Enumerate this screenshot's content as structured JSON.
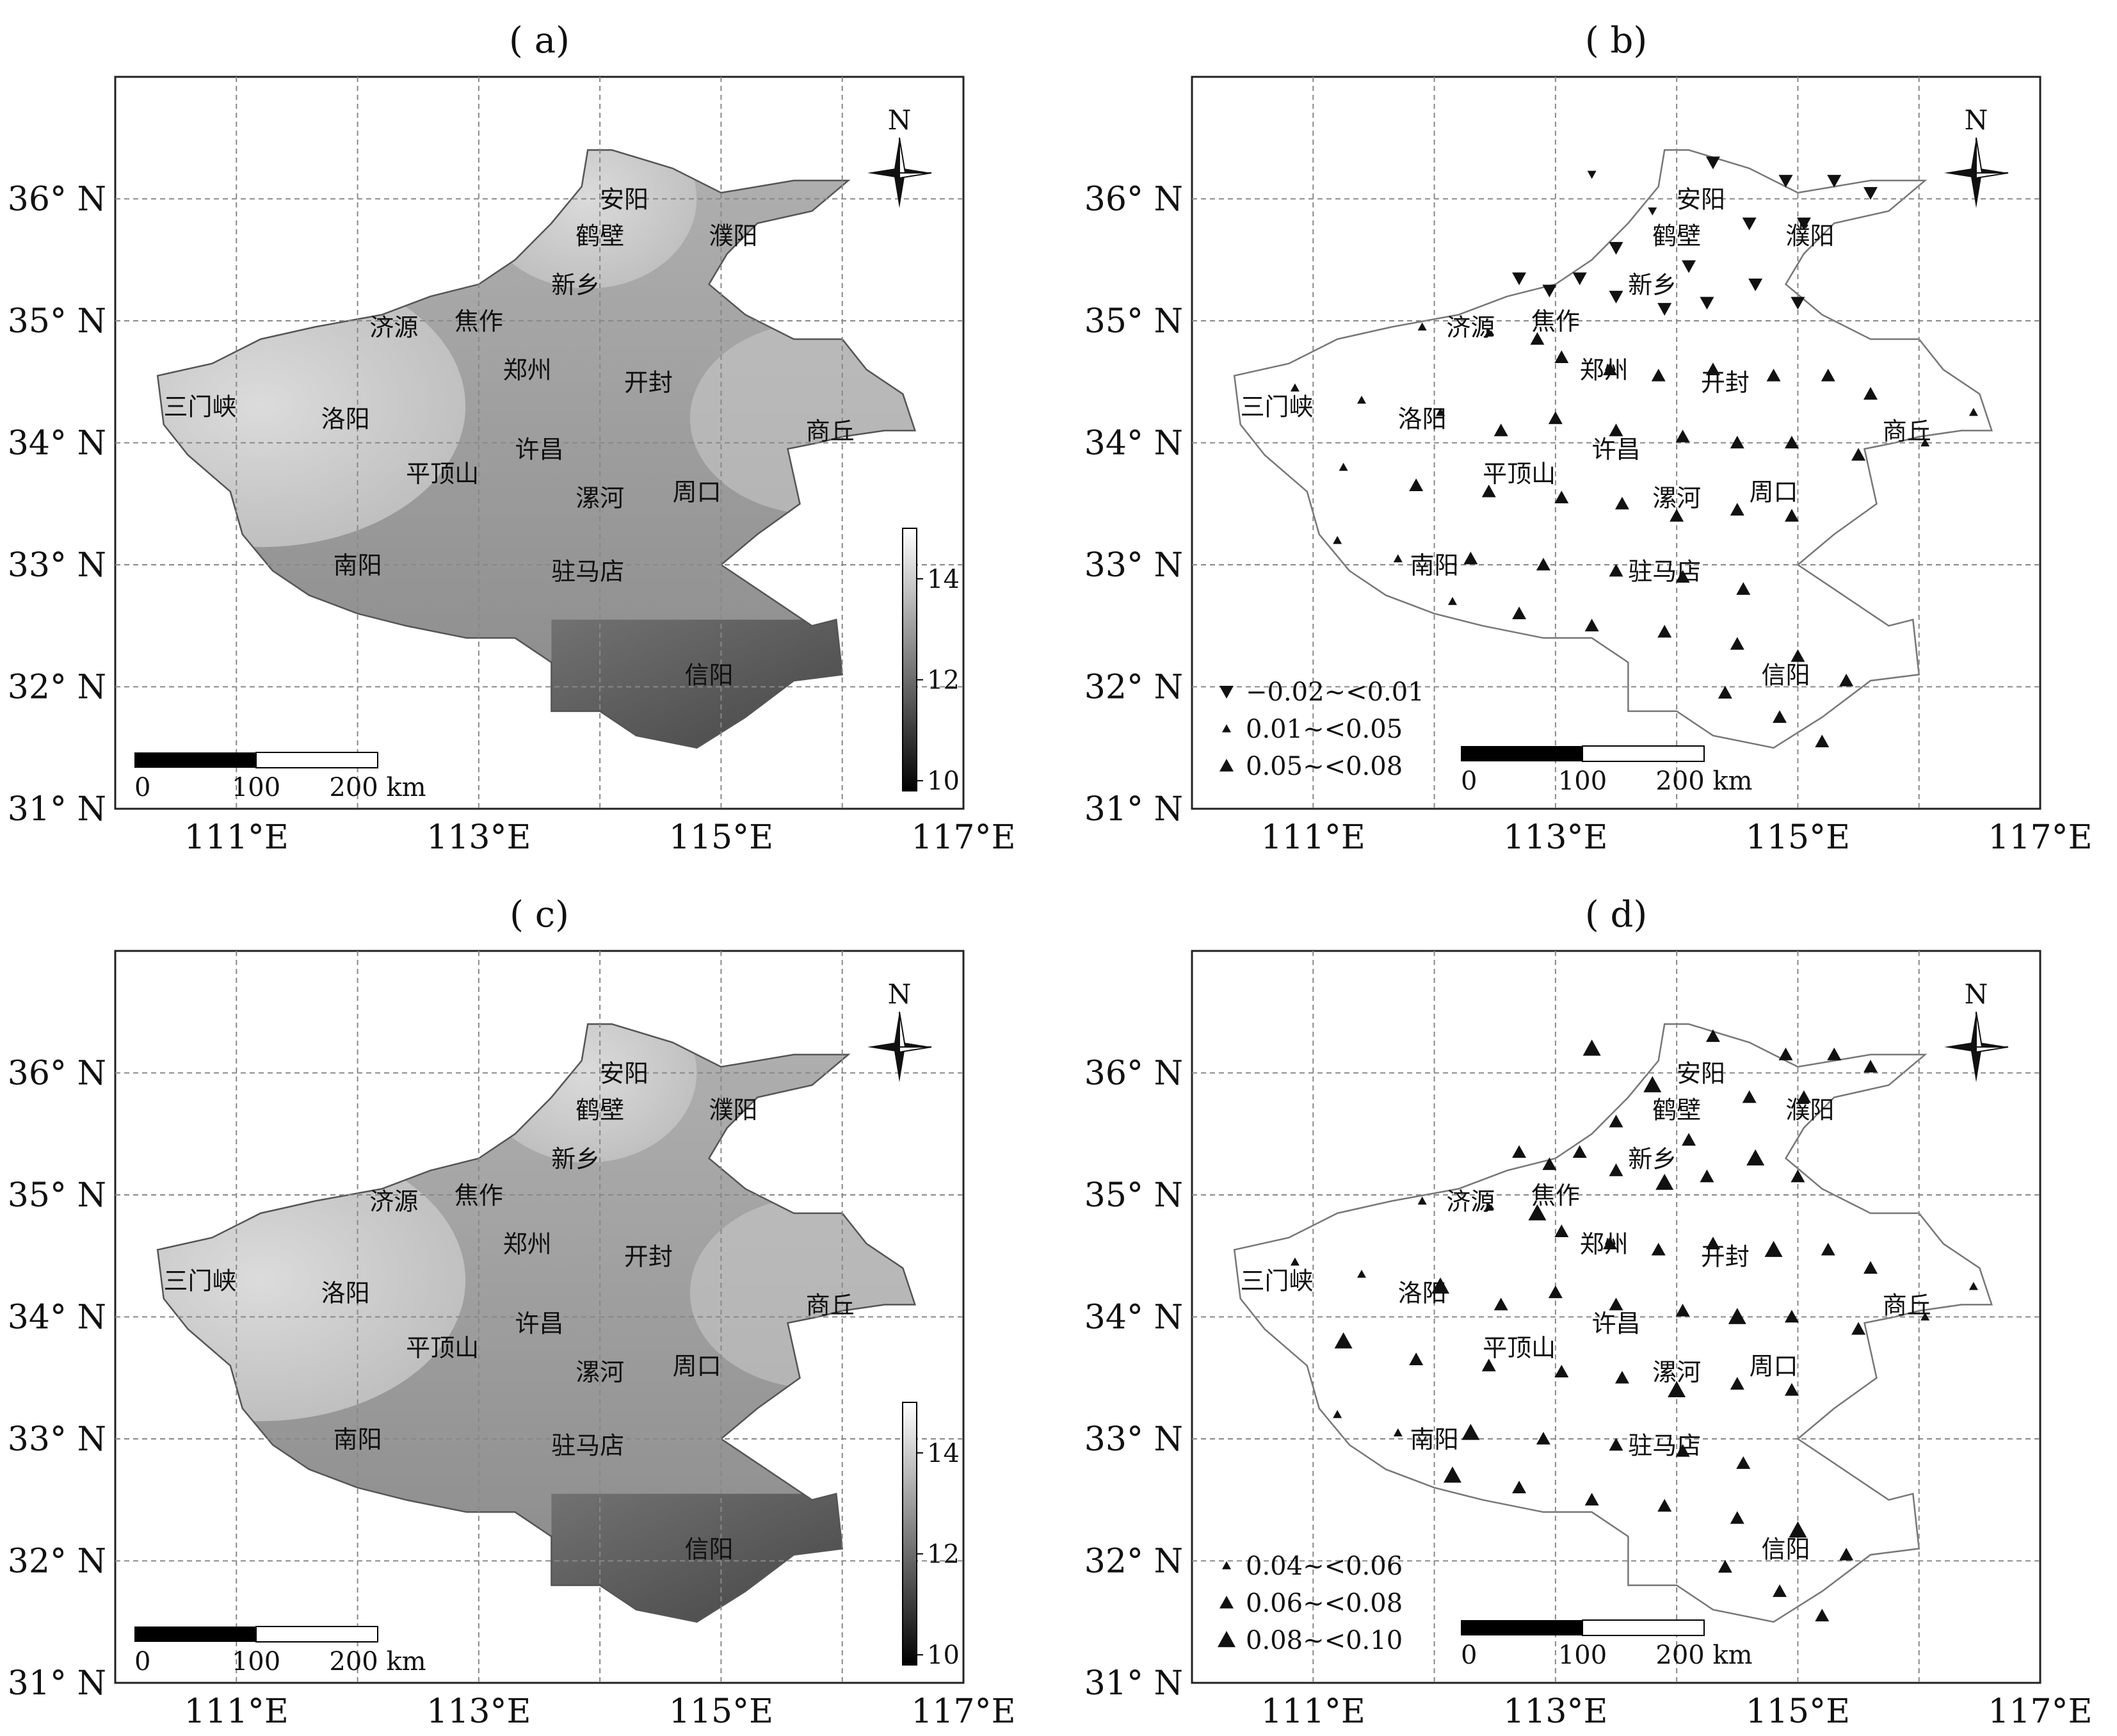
{
  "axes": {
    "lat_labels": [
      "36° N",
      "35° N",
      "34° N",
      "33° N",
      "32° N",
      "31° N"
    ],
    "lon_labels": [
      "111°E",
      "113°E",
      "115°E",
      "117°E"
    ]
  },
  "north_label": "N",
  "scale_bar": {
    "labels": [
      "0",
      "100",
      "200 km"
    ]
  },
  "cities": [
    {
      "name": "安阳",
      "lon": 114.2,
      "lat": 36.0
    },
    {
      "name": "鹤壁",
      "lon": 114.0,
      "lat": 35.7
    },
    {
      "name": "濮阳",
      "lon": 115.1,
      "lat": 35.7
    },
    {
      "name": "新乡",
      "lon": 113.8,
      "lat": 35.3
    },
    {
      "name": "济源",
      "lon": 112.3,
      "lat": 34.95
    },
    {
      "name": "焦作",
      "lon": 113.0,
      "lat": 35.0
    },
    {
      "name": "郑州",
      "lon": 113.4,
      "lat": 34.6
    },
    {
      "name": "开封",
      "lon": 114.4,
      "lat": 34.5
    },
    {
      "name": "三门峡",
      "lon": 110.7,
      "lat": 34.3
    },
    {
      "name": "洛阳",
      "lon": 111.9,
      "lat": 34.2
    },
    {
      "name": "商丘",
      "lon": 115.9,
      "lat": 34.1
    },
    {
      "name": "许昌",
      "lon": 113.5,
      "lat": 33.95
    },
    {
      "name": "平顶山",
      "lon": 112.7,
      "lat": 33.75
    },
    {
      "name": "漯河",
      "lon": 114.0,
      "lat": 33.55
    },
    {
      "name": "周口",
      "lon": 114.8,
      "lat": 33.6
    },
    {
      "name": "南阳",
      "lon": 112.0,
      "lat": 33.0
    },
    {
      "name": "驻马店",
      "lon": 113.9,
      "lat": 32.95
    },
    {
      "name": "信阳",
      "lon": 114.9,
      "lat": 32.1
    }
  ],
  "colorbar": {
    "ticks": [
      14,
      12,
      10
    ],
    "min": 9.8,
    "max": 15.0
  },
  "panels": [
    {
      "id": "a",
      "title": "( a)",
      "type": "raster"
    },
    {
      "id": "b",
      "title": "( b)",
      "type": "stations",
      "legend": [
        {
          "symbol": "down-triangle",
          "label": "−0.02~<0.01"
        },
        {
          "symbol": "small-triangle",
          "label": "0.01~<0.05"
        },
        {
          "symbol": "triangle",
          "label": "0.05~<0.08"
        }
      ]
    },
    {
      "id": "c",
      "title": "( c)",
      "type": "raster"
    },
    {
      "id": "d",
      "title": "( d)",
      "type": "stations",
      "legend": [
        {
          "symbol": "small-triangle",
          "label": "0.04~<0.06"
        },
        {
          "symbol": "triangle",
          "label": "0.06~<0.08"
        },
        {
          "symbol": "large-triangle",
          "label": "0.08~<0.10"
        }
      ]
    }
  ]
}
